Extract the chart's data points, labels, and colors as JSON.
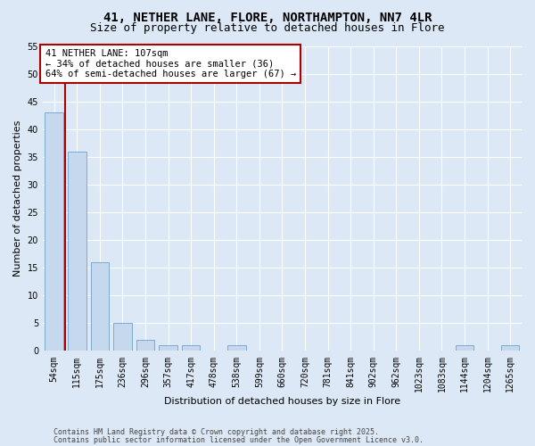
{
  "title1": "41, NETHER LANE, FLORE, NORTHAMPTON, NN7 4LR",
  "title2": "Size of property relative to detached houses in Flore",
  "categories": [
    "54sqm",
    "115sqm",
    "175sqm",
    "236sqm",
    "296sqm",
    "357sqm",
    "417sqm",
    "478sqm",
    "538sqm",
    "599sqm",
    "660sqm",
    "720sqm",
    "781sqm",
    "841sqm",
    "902sqm",
    "962sqm",
    "1023sqm",
    "1083sqm",
    "1144sqm",
    "1204sqm",
    "1265sqm"
  ],
  "values": [
    43,
    36,
    16,
    5,
    2,
    1,
    1,
    0,
    1,
    0,
    0,
    0,
    0,
    0,
    0,
    0,
    0,
    0,
    1,
    0,
    1
  ],
  "bar_color": "#c5d8ee",
  "bar_edgecolor": "#7aabcf",
  "vline_x": 0.5,
  "vline_color": "#aa0000",
  "ylabel": "Number of detached properties",
  "xlabel": "Distribution of detached houses by size in Flore",
  "ylim": [
    0,
    55
  ],
  "yticks": [
    0,
    5,
    10,
    15,
    20,
    25,
    30,
    35,
    40,
    45,
    50,
    55
  ],
  "annotation_title": "41 NETHER LANE: 107sqm",
  "annotation_line1": "← 34% of detached houses are smaller (36)",
  "annotation_line2": "64% of semi-detached houses are larger (67) →",
  "annotation_box_facecolor": "#ffffff",
  "annotation_box_edgecolor": "#aa0000",
  "footer1": "Contains HM Land Registry data © Crown copyright and database right 2025.",
  "footer2": "Contains public sector information licensed under the Open Government Licence v3.0.",
  "bg_color": "#dce8f5",
  "plot_bg_color": "#dce8f5",
  "grid_color": "#ffffff",
  "title_fontsize": 10,
  "subtitle_fontsize": 9,
  "tick_fontsize": 7,
  "label_fontsize": 8,
  "annotation_fontsize": 7.5,
  "footer_fontsize": 6
}
